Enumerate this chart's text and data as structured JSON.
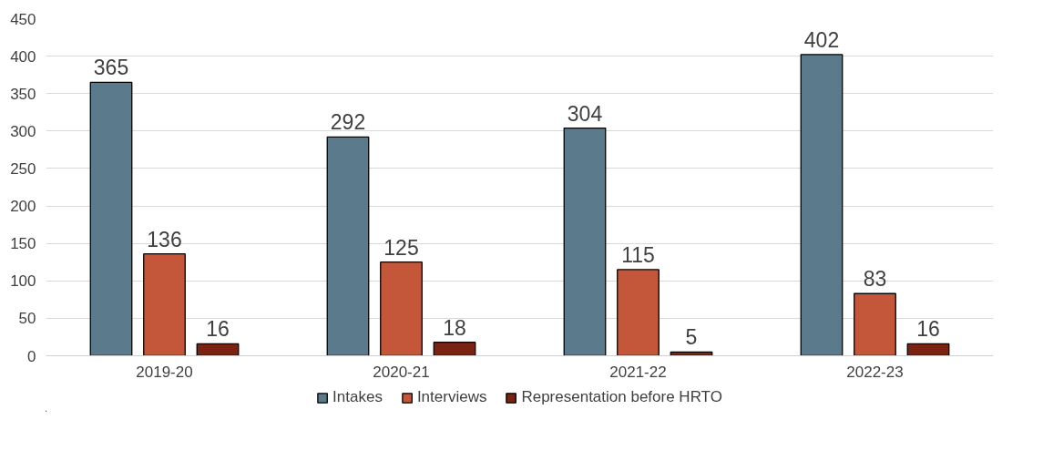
{
  "chart_data": {
    "type": "bar",
    "categories": [
      "2019-20",
      "2020-21",
      "2021-22",
      "2022-23"
    ],
    "series": [
      {
        "name": "Intakes",
        "color": "#5b7b8c",
        "values": [
          365,
          292,
          304,
          402
        ]
      },
      {
        "name": "Interviews",
        "color": "#c4573a",
        "values": [
          136,
          125,
          115,
          83
        ]
      },
      {
        "name": "Representation before HRTO",
        "color": "#7b2312",
        "values": [
          16,
          18,
          5,
          16
        ]
      }
    ],
    "ylim": [
      0,
      450
    ],
    "yticks": [
      0,
      50,
      100,
      150,
      200,
      250,
      300,
      350,
      400,
      450
    ],
    "grid": "y",
    "legend": "bottom",
    "data_labels": true
  }
}
